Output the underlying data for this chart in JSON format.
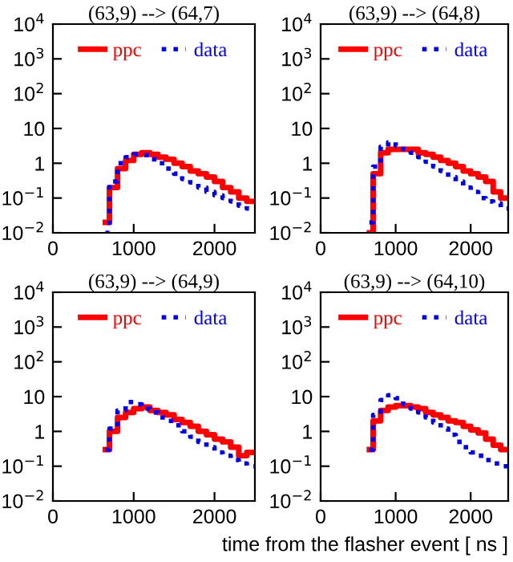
{
  "chart_data": [
    {
      "type": "step",
      "title": "(63,9) --> (64,7)",
      "log": "y",
      "legend": "top",
      "xlim": [
        0,
        2500
      ],
      "ylim": [
        0.01,
        10000
      ],
      "xticks": [
        0,
        1000,
        2000
      ],
      "yticks": [
        {
          "value": 0.01,
          "label": "10$^{−2}$"
        },
        {
          "value": 0.1,
          "label": "10$^{−1}$"
        },
        1,
        10,
        {
          "value": 100,
          "label": "10$^{2}$"
        },
        {
          "value": 1000,
          "label": "10$^{3}$"
        },
        {
          "value": 10000,
          "label": "10$^{4}$"
        }
      ],
      "x": [
        650,
        700,
        800,
        900,
        1000,
        1100,
        1200,
        1300,
        1400,
        1500,
        1600,
        1700,
        1800,
        1900,
        2000,
        2100,
        2200,
        2300,
        2400,
        2500
      ],
      "series": [
        {
          "name": "ppc",
          "color": "#ff0000",
          "line_style": "solid",
          "values": [
            0.02,
            0.2,
            0.7,
            1.2,
            1.8,
            2,
            1.8,
            1.5,
            1.3,
            1,
            0.8,
            0.6,
            0.5,
            0.4,
            0.3,
            0.2,
            0.15,
            0.1,
            0.08,
            0.08
          ]
        },
        {
          "name": "data",
          "color": "#0000ff",
          "line_style": "dotted",
          "values": [
            0.01,
            0.3,
            1,
            1.5,
            1.8,
            1.7,
            1.3,
            1,
            0.7,
            0.5,
            0.35,
            0.28,
            0.2,
            0.15,
            0.12,
            0.1,
            0.08,
            0.06,
            0.05,
            0.05
          ]
        }
      ]
    },
    {
      "type": "step",
      "title": "(63,9) --> (64,8)",
      "log": "y",
      "legend": "top",
      "xlim": [
        0,
        2500
      ],
      "ylim": [
        0.01,
        10000
      ],
      "xticks": [
        0,
        1000,
        2000
      ],
      "yticks": [
        {
          "value": 0.01,
          "label": "10$^{−2}$"
        },
        {
          "value": 0.1,
          "label": "10$^{−1}$"
        },
        1,
        10,
        {
          "value": 100,
          "label": "10$^{2}$"
        },
        {
          "value": 1000,
          "label": "10$^{3}$"
        },
        {
          "value": 10000,
          "label": "10$^{4}$"
        }
      ],
      "x": [
        650,
        700,
        800,
        900,
        1000,
        1100,
        1200,
        1300,
        1400,
        1500,
        1600,
        1700,
        1800,
        1900,
        2000,
        2100,
        2200,
        2300,
        2400,
        2500
      ],
      "series": [
        {
          "name": "ppc",
          "color": "#ff0000",
          "line_style": "solid",
          "values": [
            0.01,
            0.5,
            2,
            2.5,
            2.5,
            2.5,
            2.5,
            2,
            1.8,
            1.5,
            1.2,
            1,
            0.8,
            0.6,
            0.5,
            0.4,
            0.3,
            0.15,
            0.1,
            0.1
          ]
        },
        {
          "name": "data",
          "color": "#0000ff",
          "line_style": "dotted",
          "values": [
            0.02,
            0.8,
            3,
            4,
            3.2,
            2.5,
            2,
            1.5,
            1.1,
            0.8,
            0.6,
            0.4,
            0.3,
            0.2,
            0.15,
            0.1,
            0.08,
            0.07,
            0.05,
            0.05
          ]
        }
      ]
    },
    {
      "type": "step",
      "title": "(63,9) --> (64,9)",
      "log": "y",
      "legend": "top",
      "xlim": [
        0,
        2500
      ],
      "ylim": [
        0.01,
        10000
      ],
      "xticks": [
        0,
        1000,
        2000
      ],
      "yticks": [
        {
          "value": 0.01,
          "label": "10$^{−2}$"
        },
        {
          "value": 0.1,
          "label": "10$^{−1}$"
        },
        1,
        10,
        {
          "value": 100,
          "label": "10$^{2}$"
        },
        {
          "value": 1000,
          "label": "10$^{3}$"
        },
        {
          "value": 10000,
          "label": "10$^{4}$"
        }
      ],
      "x": [
        650,
        700,
        800,
        900,
        1000,
        1100,
        1200,
        1300,
        1400,
        1500,
        1600,
        1700,
        1800,
        1900,
        2000,
        2100,
        2200,
        2300,
        2400,
        2500
      ],
      "series": [
        {
          "name": "ppc",
          "color": "#ff0000",
          "line_style": "solid",
          "values": [
            0.3,
            1,
            2.5,
            3.5,
            4.5,
            5,
            4,
            3.5,
            3,
            2.2,
            1.8,
            1.4,
            1,
            0.8,
            0.6,
            0.5,
            0.35,
            0.2,
            0.25,
            0.25
          ]
        },
        {
          "name": "data",
          "color": "#0000ff",
          "line_style": "dotted",
          "values": [
            0.3,
            1.2,
            4,
            7,
            6,
            4.5,
            3.5,
            2.5,
            2,
            1.5,
            1,
            0.7,
            0.5,
            0.35,
            0.25,
            0.2,
            0.15,
            0.12,
            0.1,
            0.1
          ]
        }
      ]
    },
    {
      "type": "step",
      "title": "(63,9) --> (64,10)",
      "xlabel": "time from the flasher event [ ns ]",
      "log": "y",
      "legend": "top",
      "xlim": [
        0,
        2500
      ],
      "ylim": [
        0.01,
        10000
      ],
      "xticks": [
        0,
        1000,
        2000
      ],
      "yticks": [
        {
          "value": 0.01,
          "label": "10$^{−2}$"
        },
        {
          "value": 0.1,
          "label": "10$^{−1}$"
        },
        1,
        10,
        {
          "value": 100,
          "label": "10$^{2}$"
        },
        {
          "value": 1000,
          "label": "10$^{3}$"
        },
        {
          "value": 10000,
          "label": "10$^{4}$"
        }
      ],
      "x": [
        650,
        700,
        800,
        900,
        1000,
        1100,
        1200,
        1300,
        1400,
        1500,
        1600,
        1700,
        1800,
        1900,
        2000,
        2100,
        2200,
        2300,
        2400,
        2500
      ],
      "series": [
        {
          "name": "ppc",
          "color": "#ff0000",
          "line_style": "solid",
          "values": [
            0.3,
            2,
            4,
            5,
            5.5,
            5.5,
            5,
            4.5,
            3.5,
            3,
            2.5,
            2,
            1.8,
            1.4,
            1.1,
            0.9,
            0.6,
            0.4,
            0.3,
            0.3
          ]
        },
        {
          "name": "data",
          "color": "#0000ff",
          "line_style": "dotted",
          "values": [
            0.3,
            3,
            8,
            11,
            9,
            6,
            4.5,
            3.5,
            2.5,
            1.8,
            1.2,
            0.8,
            0.5,
            0.35,
            0.25,
            0.2,
            0.15,
            0.12,
            0.1,
            0.1
          ]
        }
      ]
    }
  ]
}
